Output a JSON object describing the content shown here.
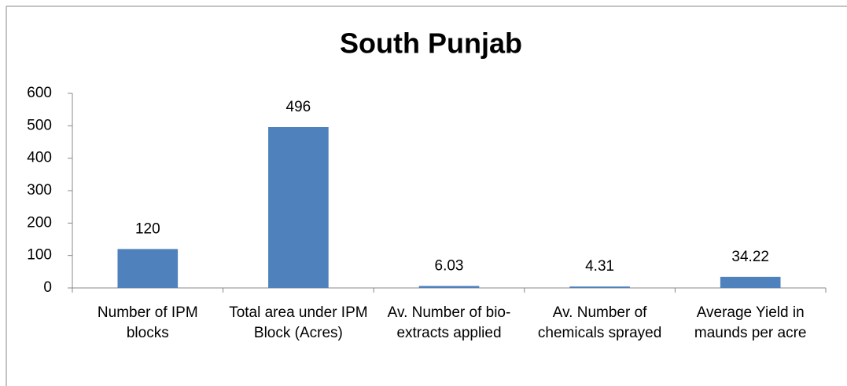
{
  "chart_data": {
    "type": "bar",
    "title": "South Punjab",
    "categories": [
      "Number of IPM blocks",
      "Total area under IPM Block (Acres)",
      "Av. Number of bio-extracts applied",
      "Av. Number of chemicals sprayed",
      "Average Yield in maunds per acre"
    ],
    "values": [
      120,
      496,
      6.03,
      4.31,
      34.22
    ],
    "color": "#4f81bd",
    "ylim": [
      0,
      600
    ],
    "yticks": [
      0,
      100,
      200,
      300,
      400,
      500,
      600
    ],
    "grid": false
  }
}
